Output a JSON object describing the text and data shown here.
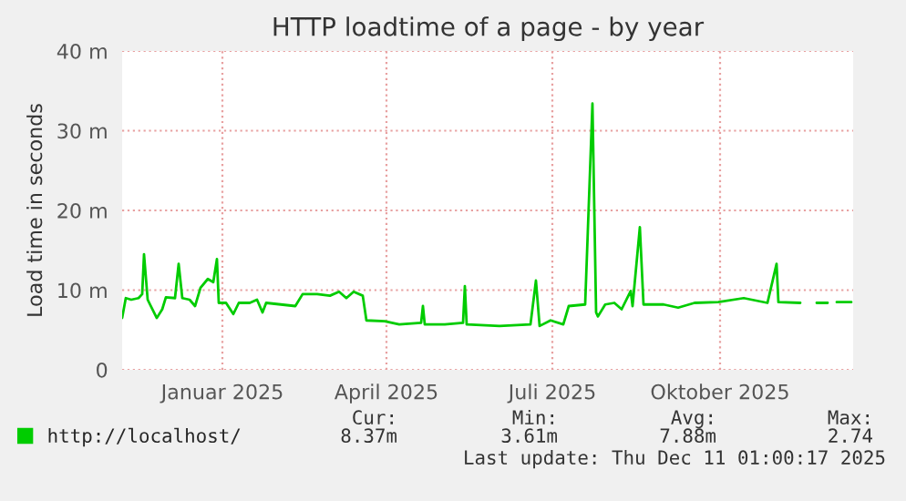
{
  "chart_data": {
    "type": "line",
    "title": "HTTP loadtime of a page - by year",
    "ylabel": "Load time in seconds",
    "x": [
      "2024-11-07",
      "2024-11-09",
      "2024-11-12",
      "2024-11-16",
      "2024-11-18",
      "2024-11-19",
      "2024-11-21",
      "2024-11-26",
      "2024-11-29",
      "2024-12-01",
      "2024-12-06",
      "2024-12-08",
      "2024-12-10",
      "2024-12-14",
      "2024-12-17",
      "2024-12-20",
      "2024-12-24",
      "2024-12-27",
      "2024-12-29",
      "2024-12-30",
      "2025-01-03",
      "2025-01-07",
      "2025-01-10",
      "2025-01-16",
      "2025-01-20",
      "2025-01-23",
      "2025-01-25",
      "2025-02-02",
      "2025-02-10",
      "2025-02-14",
      "2025-02-22",
      "2025-03-01",
      "2025-03-06",
      "2025-03-10",
      "2025-03-14",
      "2025-03-19",
      "2025-03-21",
      "2025-03-31",
      "2025-04-08",
      "2025-04-20",
      "2025-04-21",
      "2025-04-22",
      "2025-05-03",
      "2025-05-13",
      "2025-05-14",
      "2025-05-15",
      "2025-06-02",
      "2025-06-19",
      "2025-06-22",
      "2025-06-24",
      "2025-06-30",
      "2025-07-07",
      "2025-07-10",
      "2025-07-19",
      "2025-07-23",
      "2025-07-25",
      "2025-07-26",
      "2025-07-30",
      "2025-08-04",
      "2025-08-08",
      "2025-08-13",
      "2025-08-14",
      "2025-08-18",
      "2025-08-20",
      "2025-08-31",
      "2025-09-08",
      "2025-09-17",
      "2025-09-30",
      "2025-10-14",
      "2025-10-27",
      "2025-11-01",
      "2025-11-02",
      "2025-11-14",
      "2025-11-20",
      "2025-11-23",
      "2025-11-29",
      "2025-12-01",
      "2025-12-04",
      "2025-12-12"
    ],
    "series": [
      {
        "name": "http://localhost/",
        "color": "#00cc00",
        "values": [
          6.5,
          9.0,
          8.8,
          9.0,
          9.5,
          14.5,
          8.8,
          6.5,
          7.6,
          9.1,
          9.0,
          13.3,
          9.0,
          8.8,
          8.0,
          10.3,
          11.4,
          11.0,
          13.9,
          8.4,
          8.4,
          7.0,
          8.4,
          8.4,
          8.8,
          7.2,
          8.4,
          8.2,
          8.0,
          9.5,
          9.5,
          9.3,
          9.8,
          9.0,
          9.8,
          9.3,
          6.2,
          6.1,
          5.7,
          5.9,
          8.0,
          5.7,
          5.7,
          5.9,
          10.5,
          5.7,
          5.5,
          5.7,
          11.2,
          5.5,
          6.2,
          5.7,
          8.0,
          8.2,
          33.4,
          7.2,
          6.7,
          8.2,
          8.4,
          7.6,
          9.9,
          8.0,
          17.9,
          8.2,
          8.2,
          7.8,
          8.4,
          8.5,
          9.0,
          8.4,
          13.3,
          8.5,
          8.4,
          null,
          8.4,
          8.4,
          null,
          8.5,
          8.5
        ]
      }
    ],
    "xlim": [
      "2024-11-07",
      "2025-12-13"
    ],
    "xticks": [
      {
        "value": "2025-01-01",
        "label": "Januar 2025"
      },
      {
        "value": "2025-04-01",
        "label": "April 2025"
      },
      {
        "value": "2025-07-01",
        "label": "Juli 2025"
      },
      {
        "value": "2025-10-01",
        "label": "Oktober 2025"
      }
    ],
    "ylim": [
      0,
      40
    ],
    "yticks": [
      {
        "value": 0,
        "label": "0"
      },
      {
        "value": 10,
        "label": "10 m"
      },
      {
        "value": 20,
        "label": "20 m"
      },
      {
        "value": 30,
        "label": "30 m"
      },
      {
        "value": 40,
        "label": "40 m"
      }
    ],
    "grid": true,
    "legend": "bottom",
    "annotations": [
      "Cur:",
      "Min:",
      "Avg:",
      "Max:",
      "8.37m",
      "3.61m",
      "7.88m",
      "2.74",
      "Last update: Thu Dec 11 01:00:17 2025"
    ]
  }
}
